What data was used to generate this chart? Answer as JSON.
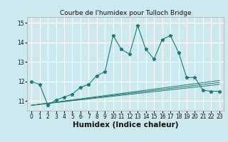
{
  "title": "Courbe de l'humidex pour Tulloch Bridge",
  "xlabel": "Humidex (Indice chaleur)",
  "xlim": [
    -0.5,
    23.5
  ],
  "ylim": [
    10.5,
    15.3
  ],
  "yticks": [
    11,
    12,
    13,
    14,
    15
  ],
  "xticks": [
    0,
    1,
    2,
    3,
    4,
    5,
    6,
    7,
    8,
    9,
    10,
    11,
    12,
    13,
    14,
    15,
    16,
    17,
    18,
    19,
    20,
    21,
    22,
    23
  ],
  "background_color": "#cce9f0",
  "grid_color": "#ffffff",
  "line_color": "#1e7a6e",
  "series": {
    "main_line": {
      "x": [
        0,
        1,
        2,
        3,
        4,
        5,
        6,
        7,
        8,
        9,
        10,
        11,
        12,
        13,
        14,
        15,
        16,
        17,
        18,
        19,
        20,
        21,
        22,
        23
      ],
      "y": [
        12.0,
        11.85,
        10.8,
        11.05,
        11.2,
        11.35,
        11.7,
        11.85,
        12.3,
        12.5,
        14.35,
        13.65,
        13.4,
        14.85,
        13.65,
        13.15,
        14.15,
        14.35,
        13.5,
        12.2,
        12.2,
        11.55,
        11.5,
        11.5
      ]
    },
    "trend1": {
      "x": [
        0,
        23
      ],
      "y": [
        10.78,
        11.85
      ]
    },
    "trend2": {
      "x": [
        0,
        23
      ],
      "y": [
        10.78,
        11.95
      ]
    },
    "trend3": {
      "x": [
        0,
        23
      ],
      "y": [
        10.78,
        12.05
      ]
    }
  },
  "title_fontsize": 6.5,
  "xlabel_fontsize": 7.5,
  "tick_fontsize": 5.5
}
